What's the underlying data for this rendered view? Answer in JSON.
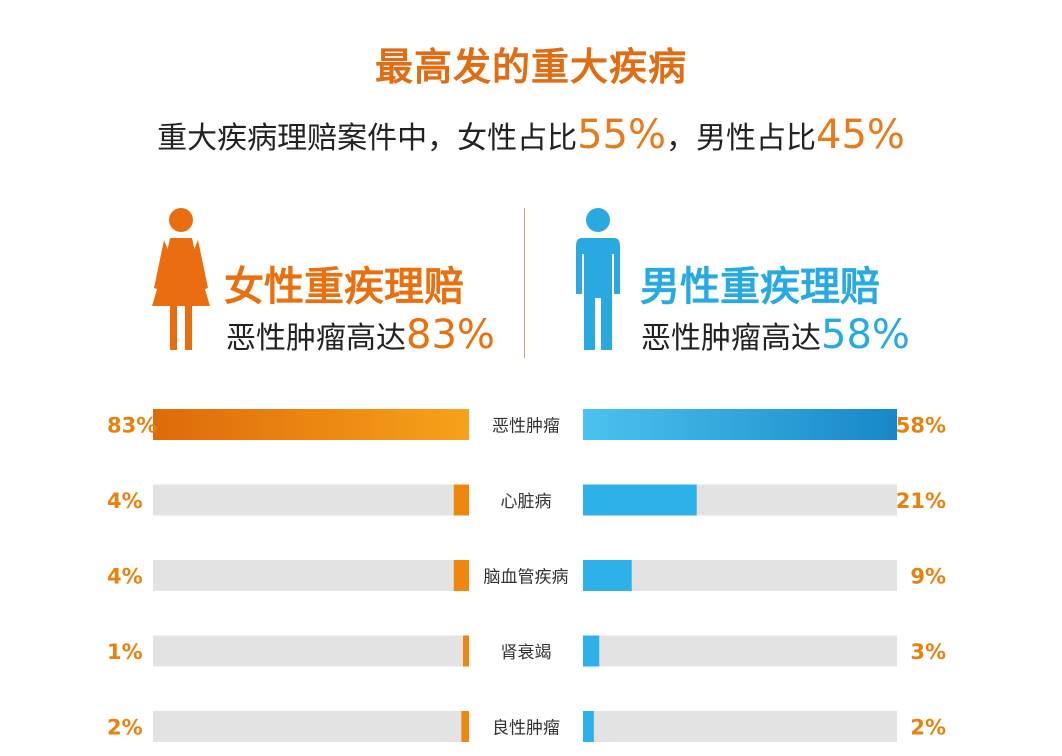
{
  "title": "最高发的重大疾病",
  "subtitle": {
    "prefix": "重大疾病理赔案件中，女性占比",
    "female_pct": "55%",
    "mid": "，男性占比",
    "male_pct": "45%"
  },
  "female": {
    "heading": "女性重疾理赔",
    "sub_prefix": "恶性肿瘤高达",
    "sub_value": "83%"
  },
  "male": {
    "heading": "男性重疾理赔",
    "sub_prefix": "恶性肿瘤高达",
    "sub_value": "58%"
  },
  "colors": {
    "female": "#ee8710",
    "male": "#2eb0e8",
    "track": "#e3e3e3"
  },
  "icons": {
    "female": "woman-figure-icon",
    "male": "man-figure-icon"
  },
  "chart_data": {
    "type": "bar",
    "categories": [
      "恶性肿瘤",
      "心脏病",
      "脑血管疾病",
      "肾衰竭",
      "良性肿瘤"
    ],
    "series": [
      {
        "name": "女性重疾理赔",
        "values": [
          83,
          4,
          4,
          1,
          2
        ],
        "labels": [
          "83%",
          "4%",
          "4%",
          "1%",
          "2%"
        ]
      },
      {
        "name": "男性重疾理赔",
        "values": [
          58,
          21,
          9,
          3,
          2
        ],
        "labels": [
          "58%",
          "21%",
          "9%",
          "3%",
          "2%"
        ]
      }
    ],
    "xlim": [
      0,
      100
    ],
    "grid": false
  }
}
